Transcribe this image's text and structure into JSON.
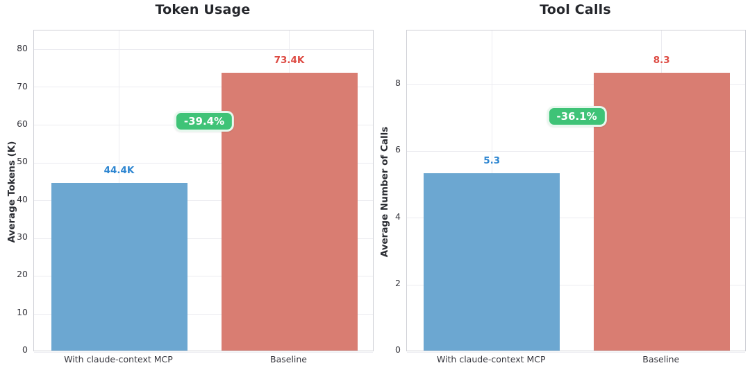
{
  "page": {
    "background": "#ffffff"
  },
  "chart_data": [
    {
      "type": "bar",
      "title": "Token Usage",
      "ylabel": "Average Tokens (K)",
      "xlabel": "",
      "categories": [
        "With claude-context MCP",
        "Baseline"
      ],
      "values": [
        44.4,
        73.4
      ],
      "value_labels": [
        "44.4K",
        "73.4K"
      ],
      "bar_colors": [
        "#6CA7D1",
        "#D97D72"
      ],
      "value_label_colors": [
        "#2E86D1",
        "#DD4B43"
      ],
      "annotation": {
        "text": "-39.4%",
        "bg_color": "#3FC377",
        "text_color": "#ffffff"
      },
      "ylim": [
        0,
        85
      ],
      "yticks": [
        0,
        10,
        20,
        30,
        40,
        50,
        60,
        70,
        80
      ],
      "grid": true,
      "legend_position": "none"
    },
    {
      "type": "bar",
      "title": "Tool Calls",
      "ylabel": "Average Number of Calls",
      "xlabel": "",
      "categories": [
        "With claude-context MCP",
        "Baseline"
      ],
      "values": [
        5.3,
        8.3
      ],
      "value_labels": [
        "5.3",
        "8.3"
      ],
      "bar_colors": [
        "#6CA7D1",
        "#D97D72"
      ],
      "value_label_colors": [
        "#2E86D1",
        "#DD4B43"
      ],
      "annotation": {
        "text": "-36.1%",
        "bg_color": "#3FC377",
        "text_color": "#ffffff"
      },
      "ylim": [
        0,
        9.6
      ],
      "yticks": [
        0,
        2,
        4,
        6,
        8
      ],
      "grid": true,
      "legend_position": "none"
    }
  ]
}
